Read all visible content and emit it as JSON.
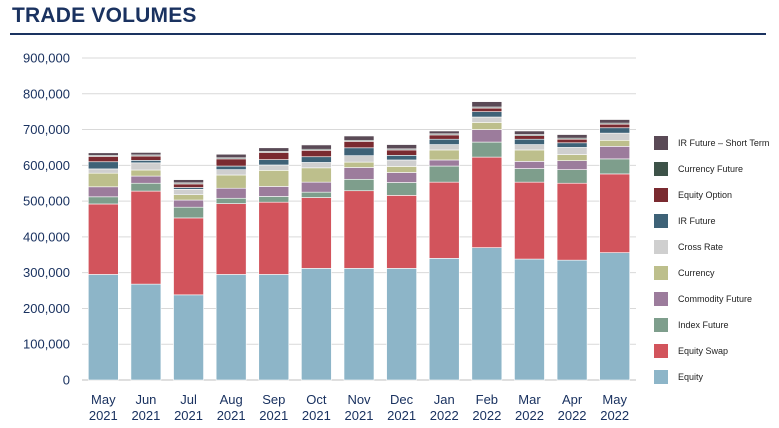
{
  "title": "TRADE VOLUMES",
  "colors": {
    "title": "#1a3260",
    "tick": "#1a3260",
    "grid": "#d9d9d9"
  },
  "chart_data": {
    "type": "bar",
    "stacked": true,
    "title": "TRADE VOLUMES",
    "xlabel": "",
    "ylabel": "",
    "ylim": [
      0,
      900000
    ],
    "yticks": [
      0,
      100000,
      200000,
      300000,
      400000,
      500000,
      600000,
      700000,
      800000,
      900000
    ],
    "ytick_labels": [
      "0",
      "100,000",
      "200,000",
      "300,000",
      "400,000",
      "500,000",
      "600,000",
      "700,000",
      "800,000",
      "900,000"
    ],
    "grid": true,
    "legend_position": "right",
    "categories": [
      [
        "May",
        "2021"
      ],
      [
        "Jun",
        "2021"
      ],
      [
        "Jul",
        "2021"
      ],
      [
        "Aug",
        "2021"
      ],
      [
        "Sep",
        "2021"
      ],
      [
        "Oct",
        "2021"
      ],
      [
        "Nov",
        "2021"
      ],
      [
        "Dec",
        "2021"
      ],
      [
        "Jan",
        "2022"
      ],
      [
        "Feb",
        "2022"
      ],
      [
        "Mar",
        "2022"
      ],
      [
        "Apr",
        "2022"
      ],
      [
        "May",
        "2022"
      ]
    ],
    "series": [
      {
        "name": "Equity",
        "color": "#8db5c8",
        "values": [
          295000,
          268000,
          238000,
          295000,
          295000,
          312000,
          312000,
          312000,
          340000,
          370000,
          338000,
          335000,
          356000
        ]
      },
      {
        "name": "Equity Swap",
        "color": "#d2545c",
        "values": [
          197000,
          260000,
          215000,
          198000,
          202000,
          198000,
          217000,
          204000,
          213000,
          253000,
          215000,
          215000,
          220000
        ]
      },
      {
        "name": "Index Future",
        "color": "#7e9e8c",
        "values": [
          20000,
          22000,
          30000,
          15000,
          16000,
          15000,
          32000,
          36000,
          45000,
          42000,
          38000,
          38000,
          42000
        ]
      },
      {
        "name": "Commodity Future",
        "color": "#9c7c9c",
        "values": [
          28000,
          20000,
          20000,
          28000,
          28000,
          28000,
          33000,
          28000,
          17000,
          35000,
          20000,
          25000,
          35000
        ]
      },
      {
        "name": "Currency",
        "color": "#bdbf8c",
        "values": [
          38000,
          17000,
          15000,
          37000,
          45000,
          40000,
          15000,
          17000,
          28000,
          20000,
          32000,
          17000,
          17000
        ]
      },
      {
        "name": "Cross Rate",
        "color": "#cfcfcf",
        "values": [
          12000,
          20000,
          15000,
          15000,
          15000,
          15000,
          18000,
          18000,
          15000,
          15000,
          15000,
          20000,
          20000
        ]
      },
      {
        "name": "IR Future",
        "color": "#3e6277",
        "values": [
          20000,
          7000,
          5000,
          10000,
          15000,
          16000,
          22000,
          13000,
          15000,
          15000,
          15000,
          13000,
          15000
        ]
      },
      {
        "name": "Equity Option",
        "color": "#7a2a30",
        "values": [
          15000,
          12000,
          10000,
          20000,
          20000,
          18000,
          18000,
          15000,
          12000,
          10000,
          10000,
          10000,
          10000
        ]
      },
      {
        "name": "Currency Future",
        "color": "#3d5248",
        "values": [
          3000,
          3000,
          3000,
          3000,
          3000,
          3000,
          3000,
          3000,
          3000,
          3000,
          3000,
          3000,
          3000
        ]
      },
      {
        "name": "IR Future – Short Term",
        "color": "#5a4a56",
        "values": [
          7000,
          7000,
          9000,
          10000,
          10000,
          12000,
          12000,
          12000,
          8000,
          15000,
          10000,
          10000,
          10000
        ]
      }
    ]
  }
}
